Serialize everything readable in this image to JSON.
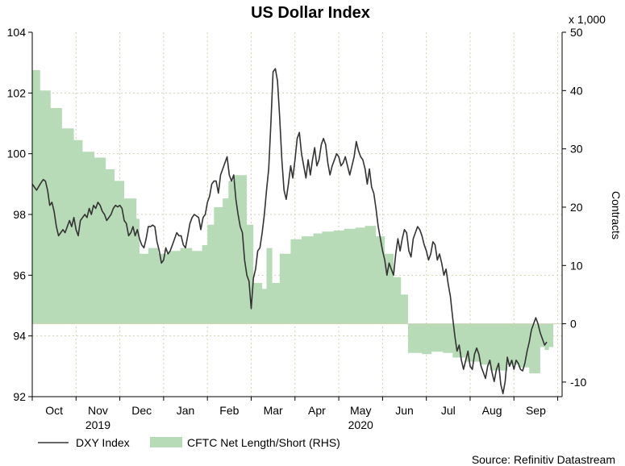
{
  "chart_data": {
    "type": "line+area",
    "title": "US Dollar Index",
    "source": "Source: Refinitiv Datastream",
    "left_axis": {
      "ylim": [
        92,
        104
      ],
      "ticks": [
        92,
        94,
        96,
        98,
        100,
        102,
        104
      ],
      "tick_labels": [
        "92",
        "94",
        "96",
        "98",
        "100",
        "102",
        "104"
      ]
    },
    "right_axis": {
      "label": "Contracts",
      "multiplier": "x 1,000",
      "ylim": [
        -12.5,
        50
      ],
      "ticks": [
        -10,
        0,
        10,
        20,
        30,
        40,
        50
      ],
      "tick_labels": [
        "-10",
        "0",
        "10",
        "20",
        "30",
        "40",
        "50"
      ]
    },
    "x_axis": {
      "domain": [
        0,
        12.1
      ],
      "month_labels": [
        {
          "label": "Oct",
          "pos": 0.5
        },
        {
          "label": "Nov",
          "pos": 1.5
        },
        {
          "label": "Dec",
          "pos": 2.5
        },
        {
          "label": "Jan",
          "pos": 3.5
        },
        {
          "label": "Feb",
          "pos": 4.5
        },
        {
          "label": "Mar",
          "pos": 5.5
        },
        {
          "label": "Apr",
          "pos": 6.5
        },
        {
          "label": "May",
          "pos": 7.5
        },
        {
          "label": "Jun",
          "pos": 8.5
        },
        {
          "label": "Jul",
          "pos": 9.5
        },
        {
          "label": "Aug",
          "pos": 10.5
        },
        {
          "label": "Sep",
          "pos": 11.5
        }
      ],
      "year_labels": [
        {
          "label": "2019",
          "pos": 1.5
        },
        {
          "label": "2020",
          "pos": 7.5
        }
      ]
    },
    "grid": true,
    "legend": {
      "placement": "bottom-left",
      "items": [
        {
          "label": "DXY Index",
          "kind": "line",
          "color": "#333333"
        },
        {
          "label": "CFTC Net Length/Short (RHS)",
          "kind": "area",
          "color": "#b7dbb7"
        }
      ]
    },
    "series": [
      {
        "name": "DXY Index",
        "axis": "left",
        "points": [
          [
            0.0,
            99.0
          ],
          [
            0.05,
            98.9
          ],
          [
            0.1,
            98.8
          ],
          [
            0.18,
            99.0
          ],
          [
            0.25,
            99.15
          ],
          [
            0.3,
            99.1
          ],
          [
            0.35,
            98.8
          ],
          [
            0.4,
            98.3
          ],
          [
            0.45,
            98.4
          ],
          [
            0.5,
            98.1
          ],
          [
            0.55,
            97.6
          ],
          [
            0.6,
            97.3
          ],
          [
            0.65,
            97.4
          ],
          [
            0.7,
            97.5
          ],
          [
            0.75,
            97.4
          ],
          [
            0.8,
            97.6
          ],
          [
            0.85,
            97.8
          ],
          [
            0.9,
            97.6
          ],
          [
            0.95,
            97.9
          ],
          [
            1.0,
            97.5
          ],
          [
            1.05,
            97.3
          ],
          [
            1.1,
            97.8
          ],
          [
            1.15,
            97.9
          ],
          [
            1.2,
            98.0
          ],
          [
            1.25,
            97.9
          ],
          [
            1.3,
            98.2
          ],
          [
            1.35,
            98.0
          ],
          [
            1.4,
            98.3
          ],
          [
            1.45,
            98.2
          ],
          [
            1.5,
            98.4
          ],
          [
            1.55,
            98.3
          ],
          [
            1.6,
            98.1
          ],
          [
            1.65,
            98.0
          ],
          [
            1.7,
            97.8
          ],
          [
            1.75,
            97.9
          ],
          [
            1.8,
            98.0
          ],
          [
            1.85,
            98.2
          ],
          [
            1.9,
            98.3
          ],
          [
            1.95,
            98.25
          ],
          [
            2.0,
            98.3
          ],
          [
            2.05,
            98.2
          ],
          [
            2.1,
            97.8
          ],
          [
            2.15,
            97.7
          ],
          [
            2.2,
            97.3
          ],
          [
            2.25,
            97.4
          ],
          [
            2.3,
            97.6
          ],
          [
            2.35,
            97.3
          ],
          [
            2.4,
            97.5
          ],
          [
            2.45,
            97.2
          ],
          [
            2.5,
            97.0
          ],
          [
            2.55,
            96.9
          ],
          [
            2.6,
            97.2
          ],
          [
            2.65,
            97.6
          ],
          [
            2.7,
            97.6
          ],
          [
            2.75,
            97.65
          ],
          [
            2.8,
            97.6
          ],
          [
            2.85,
            97.1
          ],
          [
            2.9,
            96.8
          ],
          [
            2.95,
            96.4
          ],
          [
            3.0,
            96.5
          ],
          [
            3.05,
            96.9
          ],
          [
            3.1,
            96.7
          ],
          [
            3.15,
            96.8
          ],
          [
            3.2,
            97.0
          ],
          [
            3.25,
            97.2
          ],
          [
            3.3,
            97.4
          ],
          [
            3.35,
            97.3
          ],
          [
            3.4,
            97.3
          ],
          [
            3.45,
            97.0
          ],
          [
            3.5,
            96.9
          ],
          [
            3.55,
            97.3
          ],
          [
            3.6,
            97.7
          ],
          [
            3.65,
            97.9
          ],
          [
            3.7,
            98.0
          ],
          [
            3.75,
            97.95
          ],
          [
            3.8,
            97.9
          ],
          [
            3.85,
            97.5
          ],
          [
            3.9,
            97.9
          ],
          [
            3.95,
            98.0
          ],
          [
            4.0,
            98.4
          ],
          [
            4.05,
            98.6
          ],
          [
            4.1,
            99.0
          ],
          [
            4.15,
            99.1
          ],
          [
            4.2,
            99.1
          ],
          [
            4.25,
            98.7
          ],
          [
            4.3,
            99.3
          ],
          [
            4.35,
            99.5
          ],
          [
            4.4,
            99.7
          ],
          [
            4.45,
            99.9
          ],
          [
            4.5,
            99.3
          ],
          [
            4.55,
            99.1
          ],
          [
            4.6,
            99.3
          ],
          [
            4.65,
            98.5
          ],
          [
            4.7,
            98.0
          ],
          [
            4.75,
            97.6
          ],
          [
            4.8,
            97.4
          ],
          [
            4.85,
            96.5
          ],
          [
            4.9,
            96.0
          ],
          [
            4.95,
            95.8
          ],
          [
            5.0,
            94.9
          ],
          [
            5.05,
            95.9
          ],
          [
            5.1,
            96.2
          ],
          [
            5.15,
            96.8
          ],
          [
            5.2,
            96.9
          ],
          [
            5.25,
            97.4
          ],
          [
            5.3,
            98.0
          ],
          [
            5.35,
            98.8
          ],
          [
            5.4,
            99.5
          ],
          [
            5.45,
            101.0
          ],
          [
            5.5,
            102.7
          ],
          [
            5.55,
            102.8
          ],
          [
            5.6,
            102.4
          ],
          [
            5.65,
            101.2
          ],
          [
            5.7,
            99.8
          ],
          [
            5.75,
            98.8
          ],
          [
            5.8,
            98.5
          ],
          [
            5.85,
            99.0
          ],
          [
            5.9,
            99.6
          ],
          [
            5.95,
            99.2
          ],
          [
            6.0,
            99.8
          ],
          [
            6.05,
            100.5
          ],
          [
            6.1,
            100.7
          ],
          [
            6.15,
            100.0
          ],
          [
            6.2,
            99.6
          ],
          [
            6.25,
            99.2
          ],
          [
            6.3,
            99.8
          ],
          [
            6.35,
            99.3
          ],
          [
            6.4,
            99.8
          ],
          [
            6.45,
            100.2
          ],
          [
            6.5,
            99.6
          ],
          [
            6.55,
            99.8
          ],
          [
            6.6,
            100.3
          ],
          [
            6.65,
            100.5
          ],
          [
            6.7,
            100.3
          ],
          [
            6.75,
            99.7
          ],
          [
            6.8,
            99.3
          ],
          [
            6.85,
            99.6
          ],
          [
            6.9,
            99.8
          ],
          [
            6.95,
            100.0
          ],
          [
            7.0,
            99.9
          ],
          [
            7.05,
            99.6
          ],
          [
            7.1,
            99.7
          ],
          [
            7.15,
            99.9
          ],
          [
            7.2,
            99.6
          ],
          [
            7.25,
            99.3
          ],
          [
            7.3,
            99.6
          ],
          [
            7.35,
            99.9
          ],
          [
            7.4,
            100.4
          ],
          [
            7.45,
            100.1
          ],
          [
            7.5,
            99.9
          ],
          [
            7.55,
            99.8
          ],
          [
            7.6,
            99.5
          ],
          [
            7.65,
            99.0
          ],
          [
            7.7,
            99.5
          ],
          [
            7.75,
            98.9
          ],
          [
            7.8,
            98.7
          ],
          [
            7.85,
            98.2
          ],
          [
            7.9,
            97.6
          ],
          [
            7.95,
            97.2
          ],
          [
            8.0,
            96.8
          ],
          [
            8.05,
            96.5
          ],
          [
            8.1,
            96.0
          ],
          [
            8.15,
            96.4
          ],
          [
            8.2,
            96.2
          ],
          [
            8.25,
            96.0
          ],
          [
            8.3,
            96.7
          ],
          [
            8.35,
            97.2
          ],
          [
            8.4,
            96.8
          ],
          [
            8.45,
            97.2
          ],
          [
            8.5,
            97.5
          ],
          [
            8.55,
            97.4
          ],
          [
            8.6,
            96.8
          ],
          [
            8.65,
            96.6
          ],
          [
            8.7,
            97.2
          ],
          [
            8.75,
            97.4
          ],
          [
            8.8,
            97.6
          ],
          [
            8.85,
            97.5
          ],
          [
            8.9,
            97.3
          ],
          [
            8.95,
            97.0
          ],
          [
            9.0,
            96.8
          ],
          [
            9.05,
            96.5
          ],
          [
            9.1,
            96.7
          ],
          [
            9.15,
            97.1
          ],
          [
            9.2,
            97.0
          ],
          [
            9.25,
            96.5
          ],
          [
            9.3,
            96.7
          ],
          [
            9.35,
            96.4
          ],
          [
            9.4,
            96.0
          ],
          [
            9.45,
            96.2
          ],
          [
            9.5,
            95.7
          ],
          [
            9.55,
            95.3
          ],
          [
            9.6,
            94.6
          ],
          [
            9.65,
            94.0
          ],
          [
            9.7,
            93.5
          ],
          [
            9.75,
            93.7
          ],
          [
            9.8,
            93.2
          ],
          [
            9.85,
            92.9
          ],
          [
            9.9,
            93.2
          ],
          [
            9.95,
            93.5
          ],
          [
            10.0,
            93.0
          ],
          [
            10.05,
            92.9
          ],
          [
            10.1,
            93.4
          ],
          [
            10.15,
            93.6
          ],
          [
            10.2,
            93.4
          ],
          [
            10.25,
            93.0
          ],
          [
            10.3,
            92.8
          ],
          [
            10.35,
            92.6
          ],
          [
            10.4,
            93.0
          ],
          [
            10.45,
            93.2
          ],
          [
            10.5,
            92.8
          ],
          [
            10.55,
            92.5
          ],
          [
            10.6,
            92.9
          ],
          [
            10.65,
            93.1
          ],
          [
            10.7,
            92.4
          ],
          [
            10.75,
            92.1
          ],
          [
            10.8,
            92.5
          ],
          [
            10.85,
            93.3
          ],
          [
            10.9,
            93.0
          ],
          [
            10.95,
            93.2
          ],
          [
            11.0,
            92.9
          ],
          [
            11.05,
            93.2
          ],
          [
            11.1,
            93.1
          ],
          [
            11.15,
            92.9
          ],
          [
            11.2,
            92.85
          ],
          [
            11.25,
            93.1
          ],
          [
            11.3,
            93.5
          ],
          [
            11.35,
            93.8
          ],
          [
            11.4,
            94.2
          ],
          [
            11.45,
            94.4
          ],
          [
            11.5,
            94.6
          ],
          [
            11.55,
            94.4
          ],
          [
            11.6,
            94.1
          ],
          [
            11.65,
            93.9
          ],
          [
            11.7,
            93.7
          ],
          [
            11.75,
            93.8
          ]
        ]
      },
      {
        "name": "CFTC Net Length/Short (RHS)",
        "axis": "right",
        "step": "after",
        "points": [
          [
            0.0,
            43.5
          ],
          [
            0.18,
            40.0
          ],
          [
            0.42,
            37.0
          ],
          [
            0.68,
            33.5
          ],
          [
            0.95,
            31.5
          ],
          [
            1.15,
            29.5
          ],
          [
            1.42,
            28.5
          ],
          [
            1.68,
            26.5
          ],
          [
            1.88,
            24.5
          ],
          [
            2.1,
            21.5
          ],
          [
            2.38,
            18.0
          ],
          [
            2.45,
            12.0
          ],
          [
            2.65,
            13.0
          ],
          [
            2.88,
            12.0
          ],
          [
            3.12,
            12.5
          ],
          [
            3.38,
            13.0
          ],
          [
            3.65,
            12.5
          ],
          [
            3.88,
            13.5
          ],
          [
            4.0,
            17.0
          ],
          [
            4.15,
            20.0
          ],
          [
            4.35,
            21.5
          ],
          [
            4.48,
            24.5
          ],
          [
            4.6,
            25.5
          ],
          [
            4.9,
            17.0
          ],
          [
            5.05,
            7.0
          ],
          [
            5.25,
            6.0
          ],
          [
            5.35,
            13.0
          ],
          [
            5.48,
            7.0
          ],
          [
            5.65,
            12.0
          ],
          [
            5.9,
            14.5
          ],
          [
            6.15,
            15.0
          ],
          [
            6.42,
            15.5
          ],
          [
            6.62,
            15.8
          ],
          [
            6.88,
            16.0
          ],
          [
            7.12,
            16.3
          ],
          [
            7.38,
            16.5
          ],
          [
            7.6,
            16.8
          ],
          [
            7.85,
            15.0
          ],
          [
            8.05,
            12.0
          ],
          [
            8.25,
            8.0
          ],
          [
            8.42,
            5.0
          ],
          [
            8.58,
            -5.0
          ],
          [
            8.9,
            -5.2
          ],
          [
            9.12,
            -4.8
          ],
          [
            9.38,
            -5.0
          ],
          [
            9.6,
            -5.8
          ],
          [
            9.9,
            -6.5
          ],
          [
            10.25,
            -7.0
          ],
          [
            10.45,
            -8.0
          ],
          [
            10.85,
            -7.0
          ],
          [
            11.1,
            -7.5
          ],
          [
            11.35,
            -8.5
          ],
          [
            11.6,
            -4.0
          ],
          [
            11.7,
            -4.5
          ],
          [
            11.8,
            -4.0
          ]
        ]
      }
    ]
  },
  "colors": {
    "dxy_line": "#333333",
    "cftc_fill": "#b7dbb7",
    "grid": "#d2d2b4",
    "axis": "#000000"
  }
}
